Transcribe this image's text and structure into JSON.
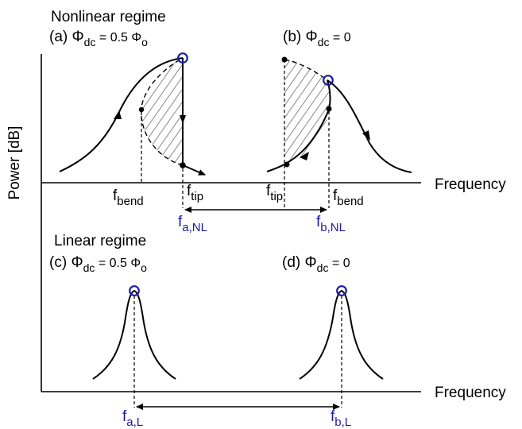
{
  "axes": {
    "ylabel": "Power [dB]",
    "top_xlabel": "Frequency",
    "bottom_xlabel": "Frequency"
  },
  "nonlinear": {
    "title": "Nonlinear regime",
    "panel_a": {
      "prefix": "(a) ",
      "sym": "Φ",
      "sub": "dc",
      "rest": " = 0.5 Φ",
      "rest_sub": "o"
    },
    "panel_b": {
      "prefix": "(b) ",
      "sym": "Φ",
      "sub": "dc",
      "rest": " = 0"
    },
    "f_bend_left": {
      "main": "f",
      "sub": "bend"
    },
    "f_tip_left": {
      "main": "f",
      "sub": "tip"
    },
    "f_tip_right": {
      "main": "f",
      "sub": "tip"
    },
    "f_bend_right": {
      "main": "f",
      "sub": "bend"
    },
    "f_a_NL": {
      "main": "f",
      "sub": "a,NL"
    },
    "f_b_NL": {
      "main": "f",
      "sub": "b,NL"
    }
  },
  "linear": {
    "title": "Linear regime",
    "panel_c": {
      "prefix": "(c) ",
      "sym": "Φ",
      "sub": "dc",
      "rest": " = 0.5 Φ",
      "rest_sub": "o"
    },
    "panel_d": {
      "prefix": "(d) ",
      "sym": "Φ",
      "sub": "dc",
      "rest": " = 0"
    },
    "f_a_L": {
      "main": "f",
      "sub": "a,L"
    },
    "f_b_L": {
      "main": "f",
      "sub": "b,L"
    }
  },
  "colors": {
    "accent": "#1a1aa8",
    "line": "#000000",
    "hatch": "#888888"
  }
}
